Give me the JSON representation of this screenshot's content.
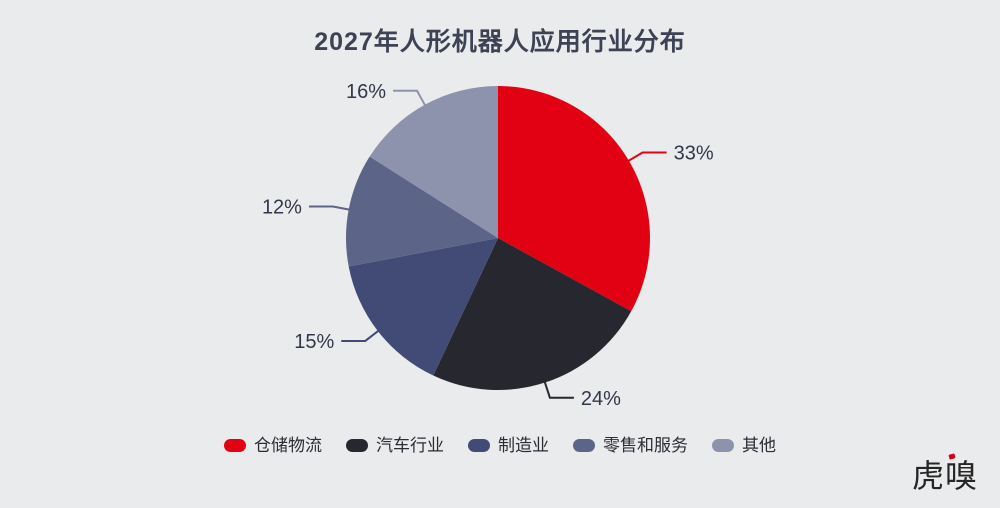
{
  "page": {
    "background_color": "#eaebec"
  },
  "chart_data": {
    "type": "pie",
    "title": "2027年人形机器人应用行业分布",
    "categories": [
      "仓储物流",
      "汽车行业",
      "制造业",
      "零售和服务",
      "其他"
    ],
    "values": [
      33,
      24,
      15,
      12,
      16
    ],
    "labels": [
      "33%",
      "24%",
      "15%",
      "12%",
      "16%"
    ],
    "colors": [
      "#e20013",
      "#26272f",
      "#414b76",
      "#5c6487",
      "#8d93ad"
    ],
    "unit": "percent",
    "start_angle": "top",
    "direction": "clockwise",
    "legend_position": "bottom",
    "label_color": "#33374a",
    "title_color": "#3d4254",
    "legend_text_color": "#2b2d36"
  },
  "logo": {
    "text": "虎嗅",
    "color": "#262626",
    "accent_color": "#d0021b"
  }
}
